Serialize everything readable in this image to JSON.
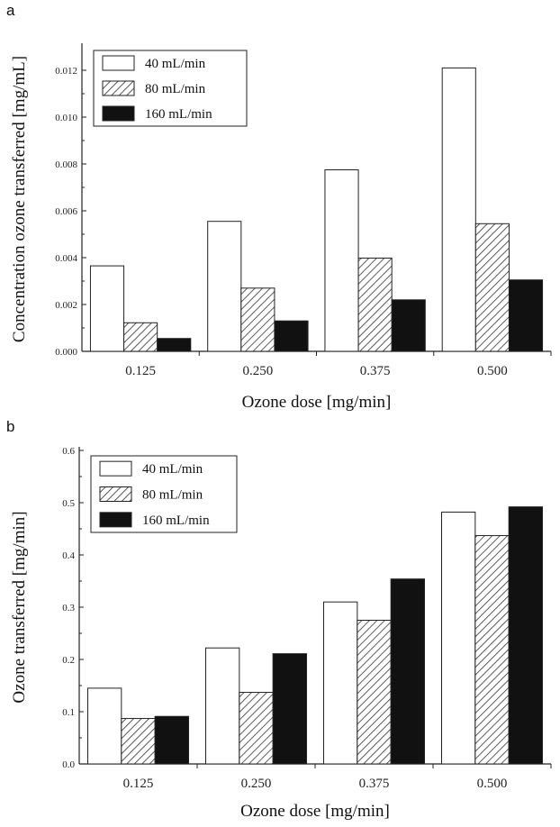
{
  "chart_data": [
    {
      "panel": "a",
      "type": "bar",
      "xlabel": "Ozone dose [mg/min]",
      "ylabel": "Concentration ozone transferred [mg/mL]",
      "categories": [
        "0.125",
        "0.250",
        "0.375",
        "0.500"
      ],
      "series": [
        {
          "name": "40 mL/min",
          "values": [
            0.00365,
            0.00555,
            0.00775,
            0.0121
          ]
        },
        {
          "name": "80 mL/min",
          "values": [
            0.00122,
            0.0027,
            0.00398,
            0.00545
          ]
        },
        {
          "name": "160 mL/min",
          "values": [
            0.00055,
            0.0013,
            0.0022,
            0.00305
          ]
        }
      ],
      "ylim": [
        0,
        0.013
      ],
      "yticks": [
        "0.000",
        "0.002",
        "0.004",
        "0.006",
        "0.008",
        "0.010",
        "0.012"
      ],
      "ytick_values": [
        0,
        0.002,
        0.004,
        0.006,
        0.008,
        0.01,
        0.012
      ],
      "grid": false,
      "legend": "top-left"
    },
    {
      "panel": "b",
      "type": "bar",
      "xlabel": "Ozone dose [mg/min]",
      "ylabel": "Ozone transferred [mg/min]",
      "categories": [
        "0.125",
        "0.250",
        "0.375",
        "0.500"
      ],
      "series": [
        {
          "name": "40 mL/min",
          "values": [
            0.145,
            0.222,
            0.31,
            0.482
          ]
        },
        {
          "name": "80 mL/min",
          "values": [
            0.087,
            0.137,
            0.275,
            0.437
          ]
        },
        {
          "name": "160 mL/min",
          "values": [
            0.091,
            0.211,
            0.354,
            0.492
          ]
        }
      ],
      "ylim": [
        0,
        0.6
      ],
      "yticks": [
        "0.0",
        "0.1",
        "0.2",
        "0.3",
        "0.4",
        "0.5",
        "0.6"
      ],
      "ytick_values": [
        0,
        0.1,
        0.2,
        0.3,
        0.4,
        0.5,
        0.6
      ],
      "grid": false,
      "legend": "top-left"
    }
  ],
  "panels": {
    "a_letter": "a",
    "b_letter": "b"
  },
  "styles": {
    "series_fills": [
      "white",
      "hatch",
      "#111111"
    ],
    "axis_color": "#222222"
  }
}
